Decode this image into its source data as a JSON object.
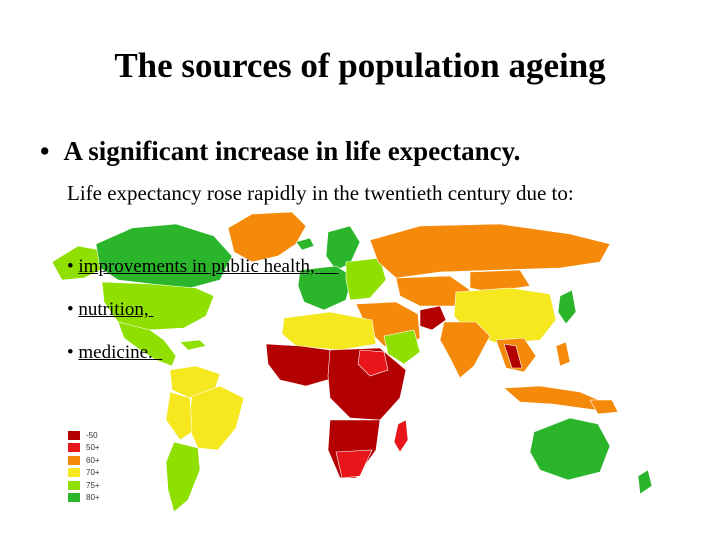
{
  "title": "The sources of population ageing",
  "main_bullet": "A significant increase in life expectancy.",
  "intro": "Life expectancy rose rapidly in the twentieth century due to:",
  "sub_bullets": [
    "improvements in public health,",
    "nutrition,",
    "medicine."
  ],
  "legend": [
    {
      "label": "-50",
      "color": "#b30000"
    },
    {
      "label": "50+",
      "color": "#e8151b"
    },
    {
      "label": "60+",
      "color": "#f58a0a"
    },
    {
      "label": "70+",
      "color": "#f5e81e"
    },
    {
      "label": "75+",
      "color": "#8fe000"
    },
    {
      "label": "80+",
      "color": "#2ab52a"
    }
  ]
}
